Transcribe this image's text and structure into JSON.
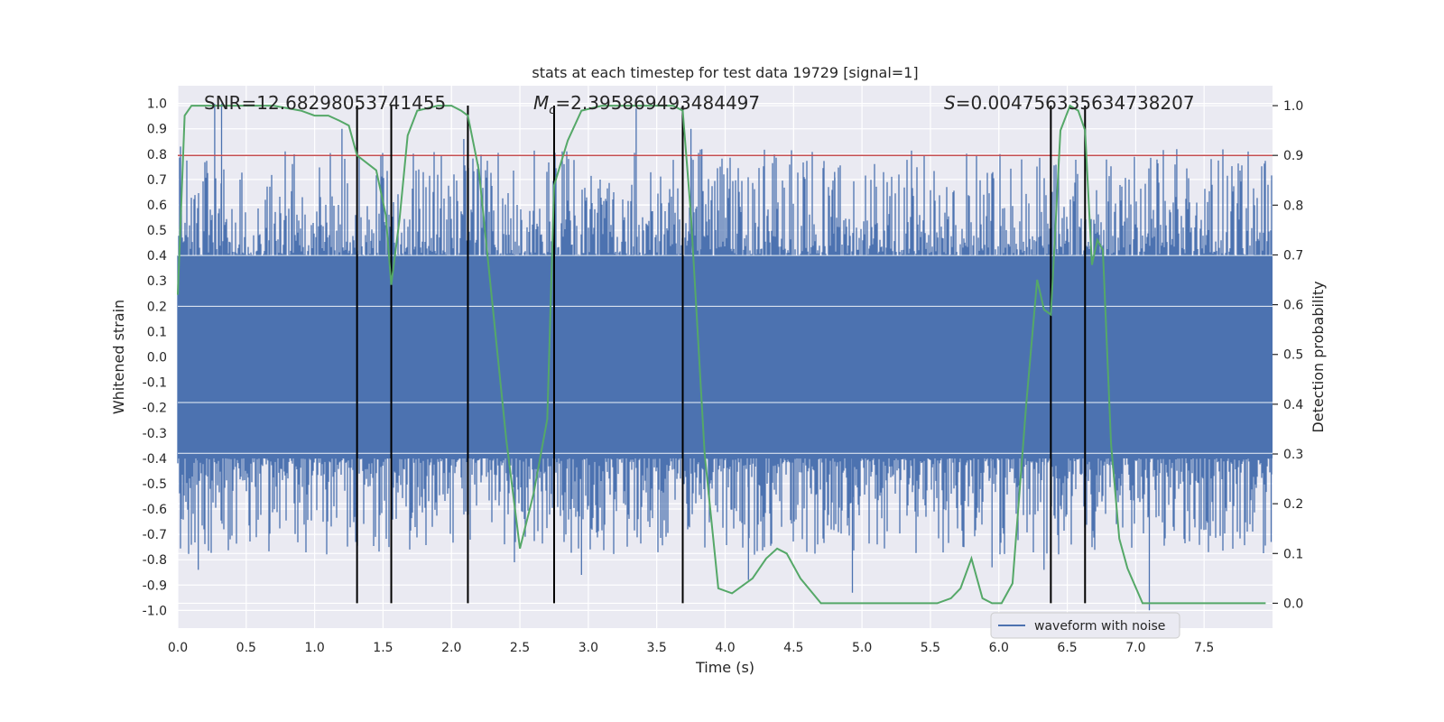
{
  "chart_data": {
    "type": "line",
    "title": "stats at each timestep for test data 19729 [signal=1]",
    "xlabel": "Time (s)",
    "ylabel_left": "Whitened strain",
    "ylabel_right": "Detection probability",
    "xlim": [
      0.0,
      8.0
    ],
    "ylim_left": [
      -1.07,
      1.07
    ],
    "ylim_right": [
      -0.05,
      1.04
    ],
    "x_ticks": [
      0.0,
      0.5,
      1.0,
      1.5,
      2.0,
      2.5,
      3.0,
      3.5,
      4.0,
      4.5,
      5.0,
      5.5,
      6.0,
      6.5,
      7.0,
      7.5
    ],
    "x_tick_labels": [
      "0.0",
      "0.5",
      "1.0",
      "1.5",
      "2.0",
      "2.5",
      "3.0",
      "3.5",
      "4.0",
      "4.5",
      "5.0",
      "5.5",
      "6.0",
      "6.5",
      "7.0",
      "7.5"
    ],
    "y_left_ticks": [
      1.0,
      0.9,
      0.8,
      0.7,
      0.6,
      0.5,
      0.4,
      0.3,
      0.2,
      0.1,
      0.0,
      -0.1,
      -0.2,
      -0.3,
      -0.4,
      -0.5,
      -0.6,
      -0.7,
      -0.8,
      -0.9,
      -1.0
    ],
    "y_left_tick_labels": [
      "1.0",
      "0.9",
      "0.8",
      "0.7",
      "0.6",
      "0.5",
      "0.4",
      "0.3",
      "0.2",
      "0.1",
      "0.0",
      "-0.1",
      "-0.2",
      "-0.3",
      "-0.4",
      "-0.5",
      "-0.6",
      "-0.7",
      "-0.8",
      "-0.9",
      "-1.0"
    ],
    "y_right_ticks": [
      1.0,
      0.9,
      0.8,
      0.7,
      0.6,
      0.5,
      0.4,
      0.3,
      0.2,
      0.1,
      0.0
    ],
    "y_right_tick_labels": [
      "1.0",
      "0.9",
      "0.8",
      "0.7",
      "0.6",
      "0.5",
      "0.4",
      "0.3",
      "0.2",
      "0.1",
      "0.0"
    ],
    "annotations": {
      "snr": "SNR=12.68298053741455",
      "mc_symbol": "M",
      "mc_sub": "c",
      "mc_value": "=2.395869493484497",
      "s_symbol": "S",
      "s_value": "=0.004756335634738207"
    },
    "legend": {
      "label": "waveform with noise",
      "placement": "lower-right"
    },
    "threshold": {
      "value": 0.9,
      "axis": "right",
      "color": "#c44e52"
    },
    "event_lines_x": [
      1.31,
      1.56,
      2.12,
      2.75,
      3.69,
      6.38,
      6.63
    ],
    "series": [
      {
        "name": "waveform with noise",
        "axis": "left",
        "color": "#4c72b0",
        "envelope": {
          "x_start": 0.0,
          "x_end": 8.0,
          "core_amplitude": 0.4,
          "upper_peaks": [
            [
              0.02,
              0.83
            ],
            [
              0.27,
              1.0
            ],
            [
              0.32,
              1.0
            ],
            [
              1.2,
              0.9
            ],
            [
              2.09,
              0.86
            ],
            [
              3.35,
              0.98
            ],
            [
              3.75,
              0.9
            ],
            [
              3.83,
              0.82
            ],
            [
              3.99,
              0.72
            ],
            [
              4.8,
              0.73
            ],
            [
              7.3,
              0.82
            ]
          ],
          "lower_peaks": [
            [
              0.15,
              -0.84
            ],
            [
              1.3,
              -0.73
            ],
            [
              2.46,
              -0.81
            ],
            [
              2.95,
              -0.86
            ],
            [
              4.17,
              -0.88
            ],
            [
              4.93,
              -0.93
            ],
            [
              5.95,
              -0.83
            ],
            [
              6.33,
              -0.84
            ],
            [
              7.1,
              -1.0
            ],
            [
              7.99,
              -0.73
            ]
          ]
        }
      },
      {
        "name": "Detection probability",
        "axis": "right",
        "color": "#55a868",
        "x": [
          0.0,
          0.05,
          0.1,
          0.2,
          0.3,
          0.5,
          0.7,
          0.9,
          1.0,
          1.1,
          1.18,
          1.25,
          1.31,
          1.45,
          1.52,
          1.56,
          1.62,
          1.68,
          1.75,
          1.9,
          2.0,
          2.07,
          2.12,
          2.2,
          2.3,
          2.4,
          2.5,
          2.6,
          2.7,
          2.75,
          2.85,
          2.95,
          3.1,
          3.3,
          3.5,
          3.62,
          3.69,
          3.75,
          3.85,
          3.95,
          4.05,
          4.2,
          4.3,
          4.38,
          4.45,
          4.55,
          4.7,
          4.85,
          5.0,
          5.15,
          5.3,
          5.45,
          5.55,
          5.65,
          5.72,
          5.8,
          5.88,
          5.95,
          6.02,
          6.1,
          6.2,
          6.28,
          6.33,
          6.38,
          6.45,
          6.52,
          6.58,
          6.63,
          6.68,
          6.72,
          6.76,
          6.82,
          6.88,
          6.94,
          7.05,
          7.2,
          7.5,
          7.8,
          7.95
        ],
        "y": [
          0.62,
          0.98,
          1.0,
          1.0,
          1.0,
          1.0,
          1.0,
          0.99,
          0.98,
          0.98,
          0.97,
          0.96,
          0.9,
          0.87,
          0.78,
          0.64,
          0.77,
          0.94,
          0.99,
          1.0,
          1.0,
          0.99,
          0.98,
          0.87,
          0.6,
          0.33,
          0.11,
          0.22,
          0.37,
          0.84,
          0.93,
          0.99,
          1.0,
          1.0,
          1.0,
          1.0,
          0.99,
          0.78,
          0.3,
          0.03,
          0.02,
          0.05,
          0.09,
          0.11,
          0.1,
          0.05,
          0.0,
          0.0,
          0.0,
          0.0,
          0.0,
          0.0,
          0.0,
          0.01,
          0.03,
          0.09,
          0.01,
          0.0,
          0.0,
          0.04,
          0.4,
          0.65,
          0.59,
          0.58,
          0.95,
          1.0,
          0.99,
          0.95,
          0.68,
          0.73,
          0.71,
          0.32,
          0.13,
          0.07,
          0.0,
          0.0,
          0.0,
          0.0,
          0.0
        ]
      }
    ]
  }
}
